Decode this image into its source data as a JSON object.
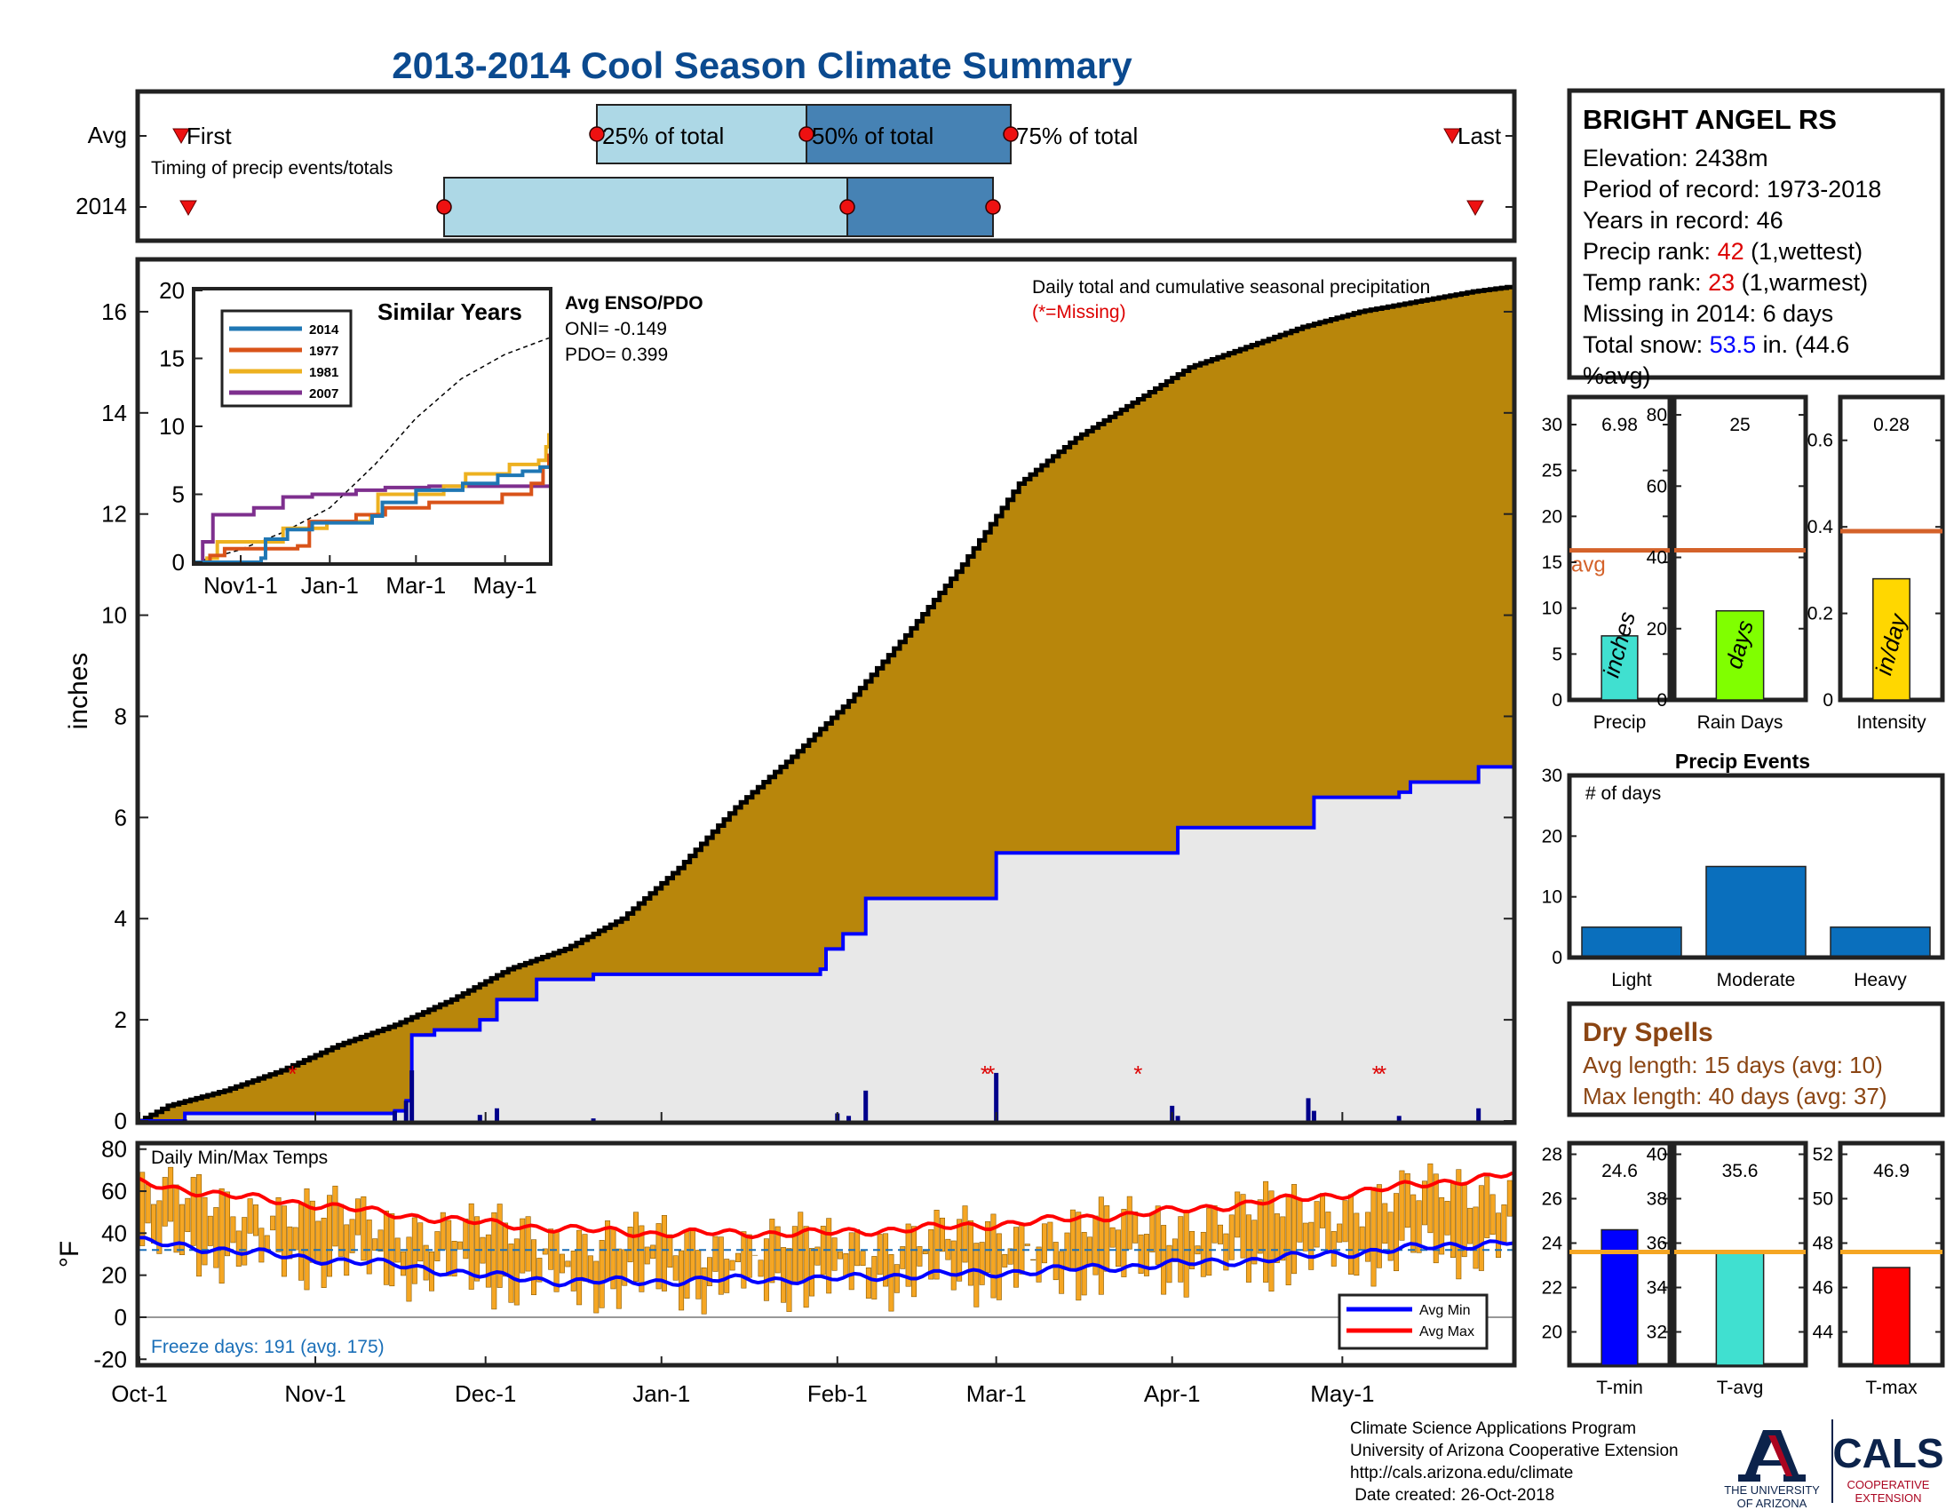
{
  "title": "2013-2014 Cool Season Climate Summary",
  "colors": {
    "title": "#0b4a8f",
    "precip_cum": "#b8860b",
    "precip_avg_fill": "#e8e8e8",
    "precip_line": "#0000ff",
    "bar_light": "#add8e6",
    "bar_dark": "#4682b4",
    "marker_red": "#ee1111",
    "orange_bar": "#f5a623",
    "avg_line_orange": "#d4622a",
    "tmin_blue": "#0000ff",
    "tmax_red": "#ff0000",
    "tavg_cyan": "#40e0d0",
    "raindays_green": "#80ff00",
    "intensity_gold": "#ffd700",
    "event_bar": "#0a6fbd",
    "dry_brown": "#8b4513",
    "rank_red": "#dd0000",
    "snow_blue": "#0000ff"
  },
  "timing": {
    "row_labels": [
      "Avg",
      "2014"
    ],
    "labels": [
      "First",
      "25% of total",
      "50% of total",
      "75% of total",
      "Last"
    ],
    "subtitle": "Timing of precip events/totals",
    "avg_days": {
      "first": 3,
      "p25": 110,
      "p50": 188,
      "p75": 256,
      "last": 365
    },
    "y2014_days": {
      "first": 4,
      "p25": 58,
      "p50": 202,
      "p75": 250,
      "last": 374
    }
  },
  "station": {
    "name": "BRIGHT ANGEL RS",
    "elevation_label": "Elevation:",
    "elevation_value": "2438m",
    "period_label": "Period of record:",
    "period_value": "1973-2018",
    "years_label": "Years in record:",
    "years_value": "46",
    "precip_rank_label": "Precip rank:",
    "precip_rank_value": "42",
    "precip_rank_note": "(1,wettest)",
    "temp_rank_label": "Temp rank:",
    "temp_rank_value": "23",
    "temp_rank_note": "(1,warmest)",
    "missing_label": "Missing in 2014:",
    "missing_value": "6 days",
    "snow_label": "Total snow:",
    "snow_value": "53.5",
    "snow_unit": "in. (44.6",
    "snow_note": "%avg)"
  },
  "main_chart": {
    "ylabel": "inches",
    "annotation": "Daily total and cumulative seasonal precipitation",
    "missing_note": "(*=Missing)",
    "x_ticks": [
      "Oct-1",
      "Nov-1",
      "Dec-1",
      "Jan-1",
      "Feb-1",
      "Mar-1",
      "Apr-1",
      "May-1"
    ],
    "x_tick_days": [
      0,
      31,
      61,
      92,
      123,
      151,
      182,
      212
    ],
    "y_ticks": [
      "0",
      "2",
      "4",
      "6",
      "8",
      "10",
      "12",
      "14",
      "16"
    ],
    "ylim": [
      0,
      17
    ],
    "xlim": [
      0,
      242
    ]
  },
  "chart_data": [
    {
      "type": "area",
      "name": "main-precip",
      "x_units": "days since Oct-1",
      "ylim": [
        0,
        17
      ],
      "avg_cumulative": {
        "x": [
          0,
          5,
          15,
          25,
          35,
          45,
          55,
          65,
          75,
          85,
          95,
          105,
          115,
          125,
          135,
          145,
          155,
          165,
          175,
          185,
          195,
          205,
          215,
          225,
          235,
          242
        ],
        "y": [
          0,
          0.3,
          0.6,
          1.0,
          1.5,
          1.9,
          2.4,
          3.0,
          3.4,
          4.0,
          5.0,
          6.2,
          7.2,
          8.3,
          9.6,
          11.0,
          12.6,
          13.5,
          14.2,
          14.9,
          15.3,
          15.7,
          16.0,
          16.2,
          16.4,
          16.5
        ]
      },
      "y2014_cumulative": {
        "x": [
          0,
          8,
          45,
          47,
          48,
          52,
          55,
          60,
          63,
          70,
          80,
          110,
          120,
          121,
          124,
          128,
          150,
          151,
          170,
          182,
          183,
          206,
          207,
          222,
          224,
          235,
          236,
          242
        ],
        "y": [
          0,
          0.15,
          0.2,
          0.4,
          1.7,
          1.8,
          1.8,
          2.0,
          2.4,
          2.8,
          2.9,
          2.9,
          3.0,
          3.4,
          3.7,
          4.4,
          4.4,
          5.3,
          5.3,
          5.3,
          5.8,
          5.8,
          6.4,
          6.5,
          6.7,
          6.7,
          7.0,
          7.0
        ]
      },
      "daily_bars": {
        "x": [
          8,
          45,
          47,
          48,
          60,
          63,
          80,
          123,
          125,
          128,
          151,
          182,
          183,
          206,
          207,
          222,
          236
        ],
        "y": [
          0.03,
          0.2,
          0.4,
          1.0,
          0.12,
          0.25,
          0.05,
          0.15,
          0.1,
          0.6,
          0.95,
          0.3,
          0.1,
          0.45,
          0.2,
          0.1,
          0.25
        ]
      },
      "missing_days": [
        27,
        149,
        150,
        176,
        218,
        219
      ]
    },
    {
      "type": "line",
      "name": "similar-years",
      "title": "Similar Years",
      "legend": [
        "2014",
        "1977",
        "1981",
        "2007"
      ],
      "colors": [
        "#1f77b4",
        "#d95319",
        "#edb120",
        "#7e2f8e"
      ],
      "x_ticks": [
        "Nov1-1",
        "Jan-1",
        "Mar-1",
        "May-1"
      ],
      "x_tick_days": [
        31,
        92,
        151,
        212
      ],
      "y_ticks": [
        "0",
        "5",
        "10",
        "15",
        "20"
      ],
      "ylim": [
        0,
        20
      ],
      "xlim": [
        0,
        242
      ],
      "series": [
        {
          "name": "2014",
          "x": [
            0,
            45,
            48,
            63,
            80,
            121,
            128,
            151,
            183,
            207,
            224,
            236,
            242
          ],
          "y": [
            0,
            0.3,
            1.7,
            2.4,
            2.9,
            3.4,
            4.4,
            5.3,
            5.8,
            6.4,
            6.7,
            7.0,
            7.0
          ]
        },
        {
          "name": "1977",
          "x": [
            0,
            10,
            20,
            70,
            78,
            110,
            130,
            160,
            210,
            230,
            238,
            242
          ],
          "y": [
            0,
            0.5,
            1.0,
            1.2,
            3.0,
            3.5,
            4.0,
            4.4,
            5.0,
            5.8,
            7.0,
            8.0
          ]
        },
        {
          "name": "1981",
          "x": [
            0,
            8,
            15,
            60,
            90,
            120,
            125,
            170,
            185,
            215,
            235,
            240,
            242
          ],
          "y": [
            0,
            0.3,
            1.5,
            2.5,
            3.0,
            3.5,
            5.0,
            5.6,
            6.5,
            7.2,
            7.5,
            8.5,
            9.5
          ]
        },
        {
          "name": "2007",
          "x": [
            0,
            5,
            12,
            40,
            60,
            80,
            110,
            130,
            160,
            242
          ],
          "y": [
            0,
            1.5,
            3.5,
            4.0,
            4.8,
            5.0,
            5.3,
            5.5,
            5.6,
            5.6
          ]
        }
      ],
      "avg": {
        "x": [
          0,
          30,
          60,
          92,
          123,
          151,
          182,
          212,
          242
        ],
        "y": [
          0,
          0.9,
          2.2,
          4.0,
          7.2,
          10.6,
          13.5,
          15.3,
          16.5
        ]
      }
    },
    {
      "type": "bar",
      "name": "precip-total",
      "categories": [
        "Precip"
      ],
      "values": [
        6.98
      ],
      "value_label": "6.98",
      "bar_text": "inches",
      "avg_label": "avg",
      "avg_value": 16.3,
      "y_ticks": [
        "0",
        "5",
        "10",
        "15",
        "20",
        "25",
        "30"
      ],
      "ylim": [
        0,
        33
      ]
    },
    {
      "type": "bar",
      "name": "rain-days",
      "categories": [
        "Rain Days"
      ],
      "values": [
        25
      ],
      "value_label": "25",
      "bar_text": "days",
      "avg_value": 42,
      "y_ticks": [
        "0",
        "20",
        "40",
        "60",
        "80"
      ],
      "ylim": [
        0,
        85
      ]
    },
    {
      "type": "bar",
      "name": "intensity",
      "categories": [
        "Intensity"
      ],
      "values": [
        0.28
      ],
      "value_label": "0.28",
      "bar_text": "in/day",
      "avg_value": 0.39,
      "y_ticks": [
        "0",
        "0.2",
        "0.4",
        "0.6"
      ],
      "ylim": [
        0,
        0.7
      ]
    },
    {
      "type": "bar",
      "name": "precip-events",
      "title": "Precip Events",
      "ylabel": "# of days",
      "categories": [
        "Light",
        "Moderate",
        "Heavy"
      ],
      "values": [
        5,
        15,
        5
      ],
      "y_ticks": [
        "0",
        "10",
        "20",
        "30"
      ],
      "ylim": [
        0,
        30
      ]
    },
    {
      "type": "bar",
      "name": "daily-temps",
      "title": "Daily Min/Max Temps",
      "ylabel": "°F",
      "x_ticks": [
        "Oct-1",
        "Nov-1",
        "Dec-1",
        "Jan-1",
        "Feb-1",
        "Mar-1",
        "Apr-1",
        "May-1"
      ],
      "x_tick_days": [
        0,
        31,
        61,
        92,
        123,
        151,
        182,
        212
      ],
      "y_ticks": [
        "-20",
        "0",
        "20",
        "40",
        "60",
        "80"
      ],
      "ylim": [
        -22,
        82
      ],
      "xlim": [
        0,
        242
      ],
      "freeze_text": "Freeze days: 191 (avg. 175)",
      "freeze_line": 32,
      "legend": [
        "Avg Min",
        "Avg Max"
      ],
      "avg_min": {
        "x": [
          0,
          15,
          30,
          45,
          60,
          75,
          90,
          105,
          120,
          135,
          150,
          165,
          180,
          195,
          210,
          225,
          242
        ],
        "y": [
          36,
          32,
          28,
          25,
          20,
          17,
          17,
          18,
          18,
          20,
          21,
          23,
          25,
          27,
          30,
          33,
          36
        ]
      },
      "avg_max": {
        "x": [
          0,
          15,
          30,
          45,
          60,
          75,
          90,
          105,
          120,
          135,
          150,
          165,
          180,
          195,
          210,
          225,
          242
        ],
        "y": [
          64,
          58,
          54,
          49,
          45,
          42,
          40,
          40,
          40,
          42,
          44,
          47,
          50,
          54,
          58,
          63,
          68
        ]
      }
    },
    {
      "type": "bar",
      "name": "tmin",
      "categories": [
        "T-min"
      ],
      "values": [
        24.6
      ],
      "value_label": "24.6",
      "avg_value": 23.6,
      "y_ticks": [
        "20",
        "22",
        "24",
        "26",
        "28"
      ],
      "ylim": [
        18.5,
        28.5
      ]
    },
    {
      "type": "bar",
      "name": "tavg",
      "categories": [
        "T-avg"
      ],
      "values": [
        35.6
      ],
      "value_label": "35.6",
      "avg_value": 35.6,
      "y_ticks": [
        "32",
        "34",
        "36",
        "38",
        "40"
      ],
      "ylim": [
        30.5,
        40.5
      ]
    },
    {
      "type": "bar",
      "name": "tmax",
      "categories": [
        "T-max"
      ],
      "values": [
        46.9
      ],
      "value_label": "46.9",
      "avg_value": 47.6,
      "y_ticks": [
        "44",
        "46",
        "48",
        "50",
        "52"
      ],
      "ylim": [
        42.5,
        52.5
      ]
    }
  ],
  "dry_spells": {
    "title": "Dry Spells",
    "avg_length": "Avg length: 15 days (avg: 10)",
    "max_length": "Max length: 40 days (avg: 37)"
  },
  "enso": {
    "title": "Avg ENSO/PDO",
    "oni": "ONI= -0.149",
    "pdo": "PDO= 0.399"
  },
  "footer": {
    "line1": "Climate Science Applications Program",
    "line2": "University of Arizona Cooperative Extension",
    "line3": "http://cals.arizona.edu/climate",
    "line4": " Date created: 26-Oct-2018"
  },
  "logos": {
    "ua_letter": "A",
    "ua_line1": "THE UNIVERSITY",
    "ua_line2": "OF ARIZONA",
    "cals": "CALS",
    "cals_line1": "COOPERATIVE",
    "cals_line2": "EXTENSION"
  }
}
